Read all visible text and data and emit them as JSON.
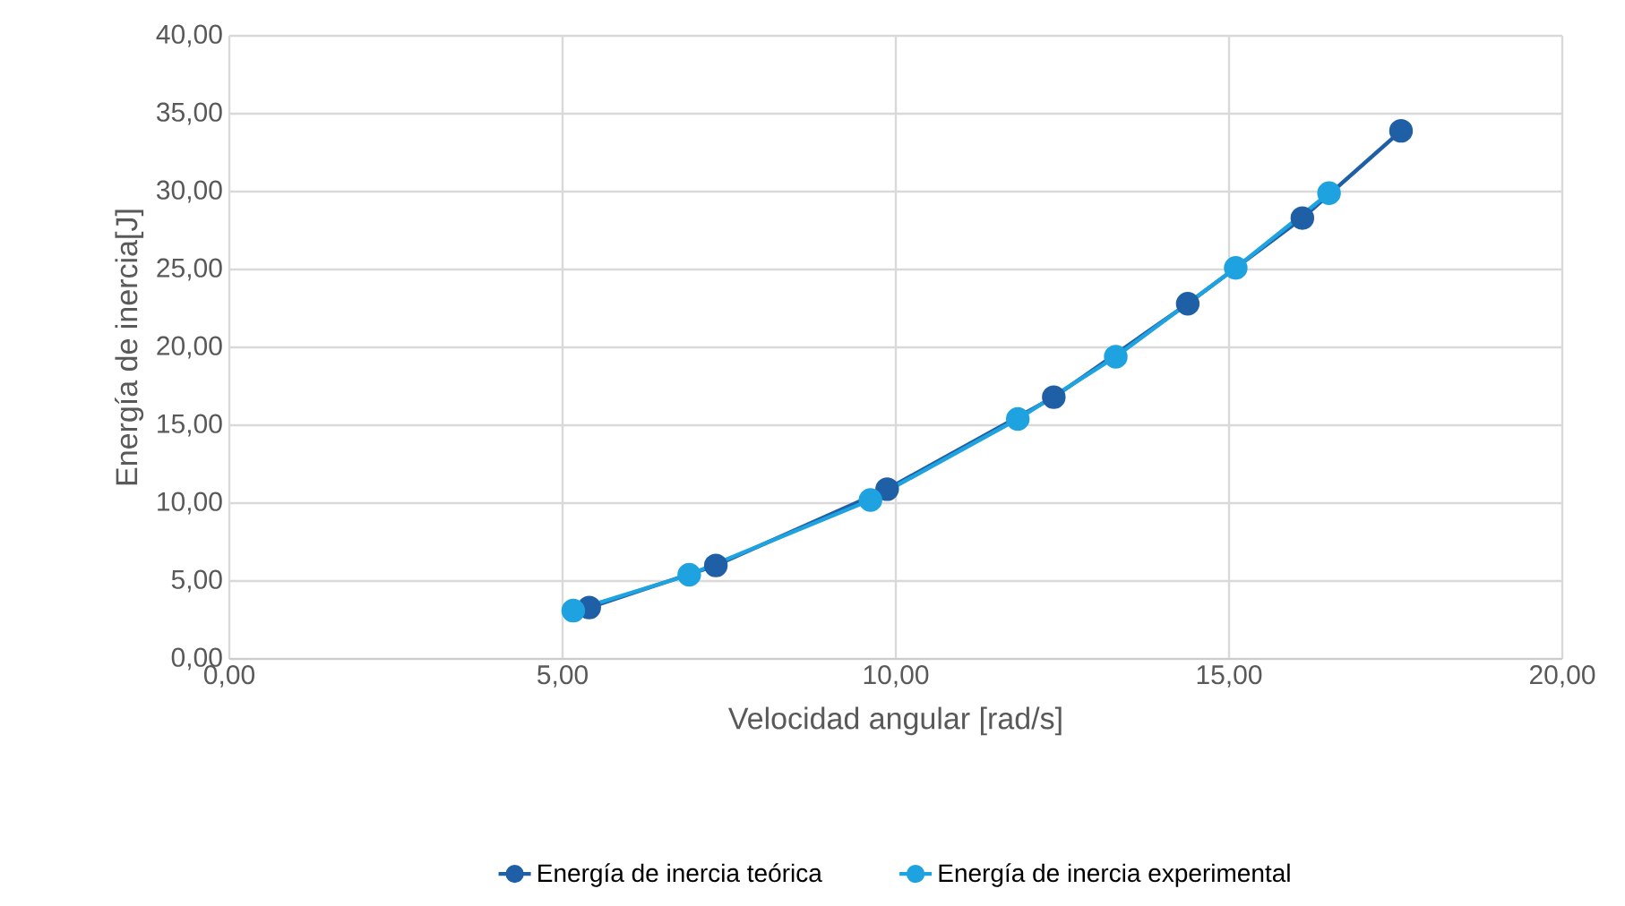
{
  "chart_data": {
    "type": "line",
    "xlabel": "Velocidad angular [rad/s]",
    "ylabel": "Energía de inercia[J]",
    "series": [
      {
        "name": "Energía de inercia teórica",
        "color": "#1f5fa6",
        "x": [
          5.4,
          7.3,
          9.87,
          12.37,
          14.38,
          16.1,
          17.58
        ],
        "values": [
          3.3,
          6.0,
          10.9,
          16.8,
          22.8,
          28.3,
          33.9
        ]
      },
      {
        "name": "Energía de inercia experimental",
        "color": "#1ea2e0",
        "x": [
          5.16,
          6.9,
          9.62,
          11.83,
          13.3,
          15.1,
          16.5
        ],
        "values": [
          3.1,
          5.4,
          10.2,
          15.4,
          19.4,
          25.1,
          29.9
        ]
      }
    ],
    "xlim": [
      0,
      20
    ],
    "ylim": [
      0,
      40
    ],
    "xticks": [
      {
        "value": 0,
        "label": "0,00"
      },
      {
        "value": 5,
        "label": "5,00"
      },
      {
        "value": 10,
        "label": "10,00"
      },
      {
        "value": 15,
        "label": "15,00"
      },
      {
        "value": 20,
        "label": "20,00"
      }
    ],
    "yticks": [
      {
        "value": 0,
        "label": "0,00"
      },
      {
        "value": 5,
        "label": "5,00"
      },
      {
        "value": 10,
        "label": "10,00"
      },
      {
        "value": 15,
        "label": "15,00"
      },
      {
        "value": 20,
        "label": "20,00"
      },
      {
        "value": 25,
        "label": "25,00"
      },
      {
        "value": 30,
        "label": "30,00"
      },
      {
        "value": 35,
        "label": "35,00"
      },
      {
        "value": 40,
        "label": "40,00"
      }
    ],
    "grid": true,
    "legend": "bottom",
    "marker": "circle",
    "line_style": "solid"
  }
}
